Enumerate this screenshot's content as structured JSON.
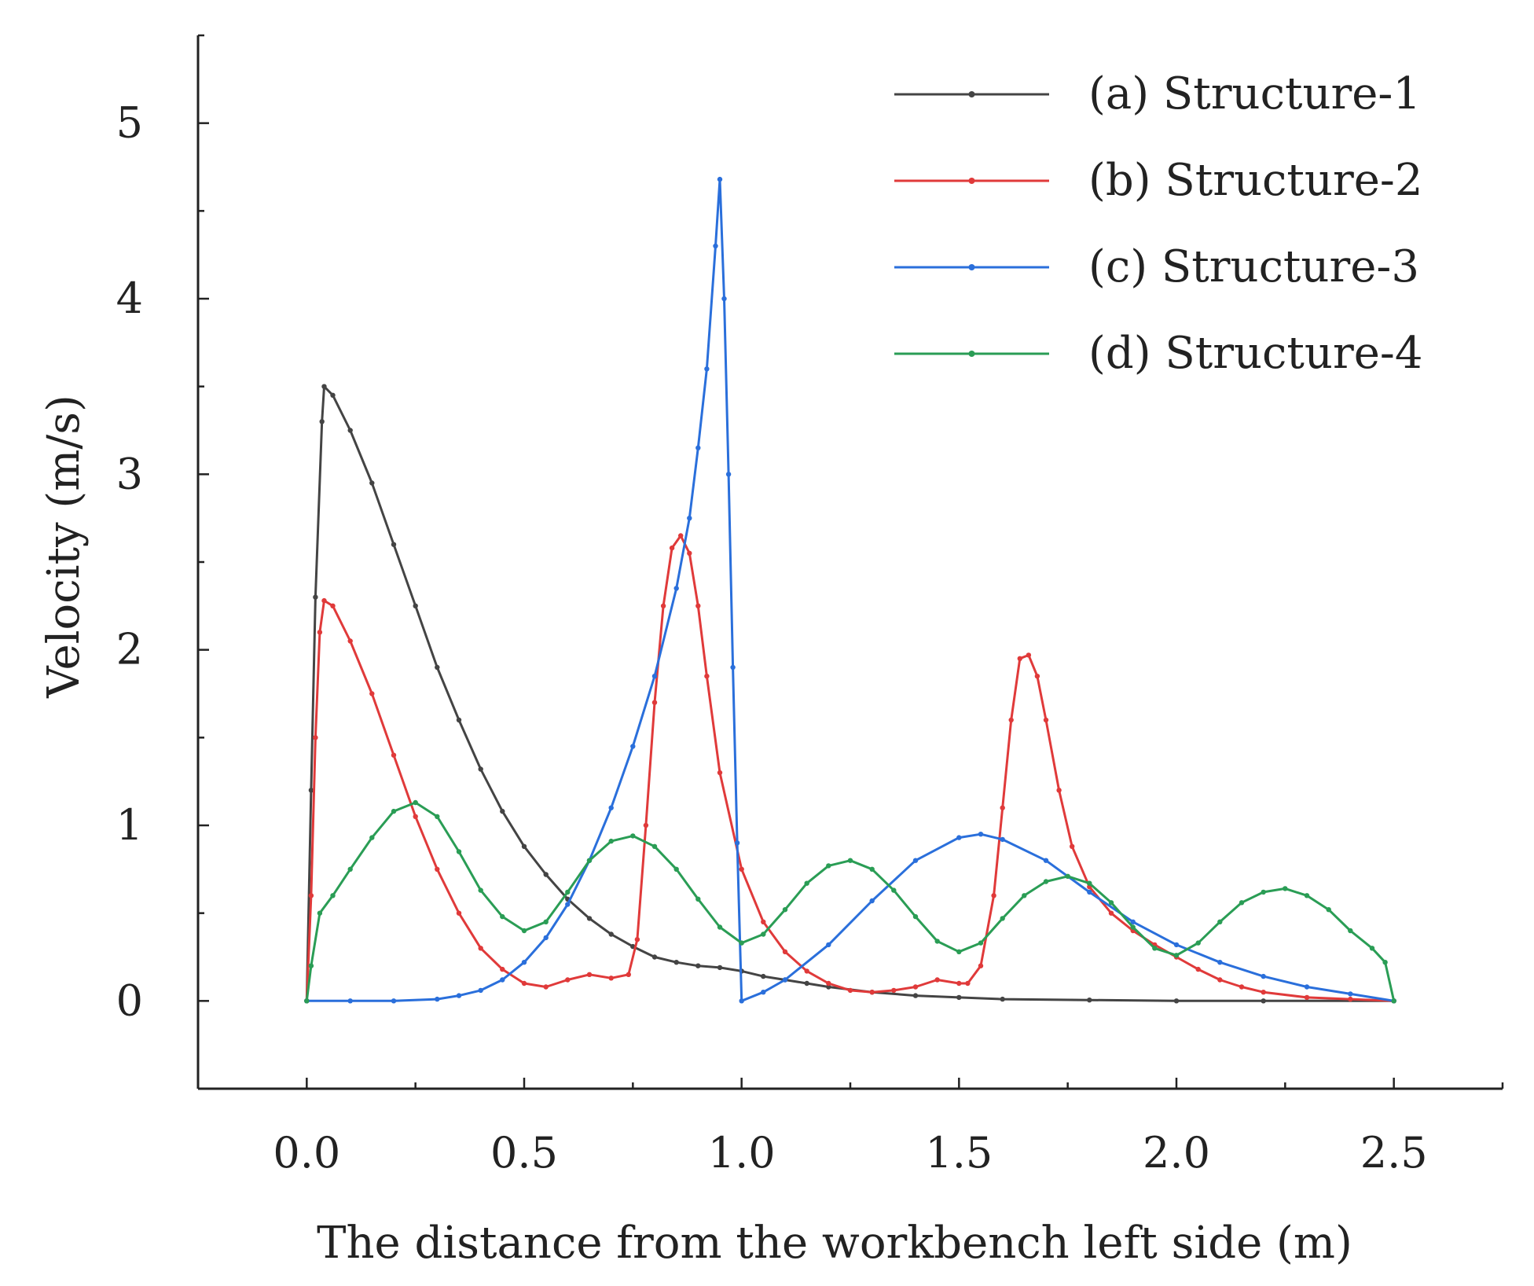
{
  "chart_data": {
    "type": "line",
    "title": "",
    "xlabel": "The distance from the workbench left side (m)",
    "ylabel": "Velocity (m/s)",
    "xlim": [
      -0.25,
      2.75
    ],
    "ylim": [
      -0.5,
      5.5
    ],
    "x_ticks": [
      0.0,
      0.5,
      1.0,
      1.5,
      2.0,
      2.5
    ],
    "x_tick_labels": [
      "0.0",
      "0.5",
      "1.0",
      "1.5",
      "2.0",
      "2.5"
    ],
    "y_ticks": [
      0,
      1,
      2,
      3,
      4,
      5
    ],
    "y_tick_labels": [
      "0",
      "1",
      "2",
      "3",
      "4",
      "5"
    ],
    "grid": false,
    "legend_position": "top-right",
    "series": [
      {
        "name": "(a) Structure-1",
        "color": "#444444",
        "points": [
          [
            0.0,
            0.0
          ],
          [
            0.01,
            1.2
          ],
          [
            0.02,
            2.3
          ],
          [
            0.035,
            3.3
          ],
          [
            0.04,
            3.5
          ],
          [
            0.06,
            3.45
          ],
          [
            0.1,
            3.25
          ],
          [
            0.15,
            2.95
          ],
          [
            0.2,
            2.6
          ],
          [
            0.25,
            2.25
          ],
          [
            0.3,
            1.9
          ],
          [
            0.35,
            1.6
          ],
          [
            0.4,
            1.32
          ],
          [
            0.45,
            1.08
          ],
          [
            0.5,
            0.88
          ],
          [
            0.55,
            0.72
          ],
          [
            0.6,
            0.58
          ],
          [
            0.65,
            0.47
          ],
          [
            0.7,
            0.38
          ],
          [
            0.75,
            0.31
          ],
          [
            0.8,
            0.25
          ],
          [
            0.85,
            0.22
          ],
          [
            0.9,
            0.2
          ],
          [
            0.95,
            0.19
          ],
          [
            1.0,
            0.17
          ],
          [
            1.05,
            0.14
          ],
          [
            1.1,
            0.12
          ],
          [
            1.15,
            0.1
          ],
          [
            1.2,
            0.08
          ],
          [
            1.3,
            0.05
          ],
          [
            1.4,
            0.03
          ],
          [
            1.5,
            0.02
          ],
          [
            1.6,
            0.01
          ],
          [
            1.8,
            0.005
          ],
          [
            2.0,
            0.0
          ],
          [
            2.2,
            0.0
          ],
          [
            2.5,
            0.0
          ]
        ]
      },
      {
        "name": "(b) Structure-2",
        "color": "#e03a3a",
        "points": [
          [
            0.0,
            0.0
          ],
          [
            0.01,
            0.6
          ],
          [
            0.02,
            1.5
          ],
          [
            0.03,
            2.1
          ],
          [
            0.04,
            2.28
          ],
          [
            0.06,
            2.25
          ],
          [
            0.1,
            2.05
          ],
          [
            0.15,
            1.75
          ],
          [
            0.2,
            1.4
          ],
          [
            0.25,
            1.05
          ],
          [
            0.3,
            0.75
          ],
          [
            0.35,
            0.5
          ],
          [
            0.4,
            0.3
          ],
          [
            0.45,
            0.18
          ],
          [
            0.5,
            0.1
          ],
          [
            0.55,
            0.08
          ],
          [
            0.6,
            0.12
          ],
          [
            0.65,
            0.15
          ],
          [
            0.7,
            0.13
          ],
          [
            0.74,
            0.15
          ],
          [
            0.76,
            0.35
          ],
          [
            0.78,
            1.0
          ],
          [
            0.8,
            1.7
          ],
          [
            0.82,
            2.25
          ],
          [
            0.84,
            2.58
          ],
          [
            0.86,
            2.65
          ],
          [
            0.88,
            2.55
          ],
          [
            0.9,
            2.25
          ],
          [
            0.92,
            1.85
          ],
          [
            0.95,
            1.3
          ],
          [
            1.0,
            0.75
          ],
          [
            1.05,
            0.45
          ],
          [
            1.1,
            0.28
          ],
          [
            1.15,
            0.17
          ],
          [
            1.2,
            0.1
          ],
          [
            1.25,
            0.06
          ],
          [
            1.3,
            0.05
          ],
          [
            1.35,
            0.06
          ],
          [
            1.4,
            0.08
          ],
          [
            1.45,
            0.12
          ],
          [
            1.5,
            0.1
          ],
          [
            1.52,
            0.1
          ],
          [
            1.55,
            0.2
          ],
          [
            1.58,
            0.6
          ],
          [
            1.6,
            1.1
          ],
          [
            1.62,
            1.6
          ],
          [
            1.64,
            1.95
          ],
          [
            1.66,
            1.97
          ],
          [
            1.68,
            1.85
          ],
          [
            1.7,
            1.6
          ],
          [
            1.73,
            1.2
          ],
          [
            1.76,
            0.88
          ],
          [
            1.8,
            0.65
          ],
          [
            1.85,
            0.5
          ],
          [
            1.9,
            0.4
          ],
          [
            1.95,
            0.32
          ],
          [
            2.0,
            0.25
          ],
          [
            2.05,
            0.18
          ],
          [
            2.1,
            0.12
          ],
          [
            2.15,
            0.08
          ],
          [
            2.2,
            0.05
          ],
          [
            2.3,
            0.02
          ],
          [
            2.4,
            0.01
          ],
          [
            2.5,
            0.0
          ]
        ]
      },
      {
        "name": "(c) Structure-3",
        "color": "#2a6fdb",
        "points": [
          [
            0.0,
            0.0
          ],
          [
            0.1,
            0.0
          ],
          [
            0.2,
            0.0
          ],
          [
            0.3,
            0.01
          ],
          [
            0.35,
            0.03
          ],
          [
            0.4,
            0.06
          ],
          [
            0.45,
            0.12
          ],
          [
            0.5,
            0.22
          ],
          [
            0.55,
            0.36
          ],
          [
            0.6,
            0.55
          ],
          [
            0.65,
            0.8
          ],
          [
            0.7,
            1.1
          ],
          [
            0.75,
            1.45
          ],
          [
            0.8,
            1.85
          ],
          [
            0.85,
            2.35
          ],
          [
            0.88,
            2.75
          ],
          [
            0.9,
            3.15
          ],
          [
            0.92,
            3.6
          ],
          [
            0.94,
            4.3
          ],
          [
            0.95,
            4.68
          ],
          [
            0.96,
            4.0
          ],
          [
            0.97,
            3.0
          ],
          [
            0.98,
            1.9
          ],
          [
            0.99,
            0.9
          ],
          [
            1.0,
            0.0
          ],
          [
            1.05,
            0.05
          ],
          [
            1.1,
            0.12
          ],
          [
            1.2,
            0.32
          ],
          [
            1.3,
            0.57
          ],
          [
            1.4,
            0.8
          ],
          [
            1.5,
            0.93
          ],
          [
            1.55,
            0.95
          ],
          [
            1.6,
            0.92
          ],
          [
            1.7,
            0.8
          ],
          [
            1.8,
            0.62
          ],
          [
            1.9,
            0.45
          ],
          [
            2.0,
            0.32
          ],
          [
            2.1,
            0.22
          ],
          [
            2.2,
            0.14
          ],
          [
            2.3,
            0.08
          ],
          [
            2.4,
            0.04
          ],
          [
            2.5,
            0.0
          ]
        ]
      },
      {
        "name": "(d) Structure-4",
        "color": "#2a9d55",
        "points": [
          [
            0.0,
            0.0
          ],
          [
            0.01,
            0.2
          ],
          [
            0.03,
            0.5
          ],
          [
            0.06,
            0.6
          ],
          [
            0.1,
            0.75
          ],
          [
            0.15,
            0.93
          ],
          [
            0.2,
            1.08
          ],
          [
            0.25,
            1.13
          ],
          [
            0.3,
            1.05
          ],
          [
            0.35,
            0.85
          ],
          [
            0.4,
            0.63
          ],
          [
            0.45,
            0.48
          ],
          [
            0.5,
            0.4
          ],
          [
            0.55,
            0.45
          ],
          [
            0.6,
            0.62
          ],
          [
            0.65,
            0.8
          ],
          [
            0.7,
            0.91
          ],
          [
            0.75,
            0.94
          ],
          [
            0.8,
            0.88
          ],
          [
            0.85,
            0.75
          ],
          [
            0.9,
            0.58
          ],
          [
            0.95,
            0.42
          ],
          [
            1.0,
            0.33
          ],
          [
            1.05,
            0.38
          ],
          [
            1.1,
            0.52
          ],
          [
            1.15,
            0.67
          ],
          [
            1.2,
            0.77
          ],
          [
            1.25,
            0.8
          ],
          [
            1.3,
            0.75
          ],
          [
            1.35,
            0.63
          ],
          [
            1.4,
            0.48
          ],
          [
            1.45,
            0.34
          ],
          [
            1.5,
            0.28
          ],
          [
            1.55,
            0.33
          ],
          [
            1.6,
            0.47
          ],
          [
            1.65,
            0.6
          ],
          [
            1.7,
            0.68
          ],
          [
            1.75,
            0.71
          ],
          [
            1.8,
            0.67
          ],
          [
            1.85,
            0.56
          ],
          [
            1.9,
            0.42
          ],
          [
            1.95,
            0.3
          ],
          [
            2.0,
            0.26
          ],
          [
            2.05,
            0.33
          ],
          [
            2.1,
            0.45
          ],
          [
            2.15,
            0.56
          ],
          [
            2.2,
            0.62
          ],
          [
            2.25,
            0.64
          ],
          [
            2.3,
            0.6
          ],
          [
            2.35,
            0.52
          ],
          [
            2.4,
            0.4
          ],
          [
            2.45,
            0.3
          ],
          [
            2.48,
            0.22
          ],
          [
            2.5,
            0.0
          ]
        ]
      }
    ]
  }
}
